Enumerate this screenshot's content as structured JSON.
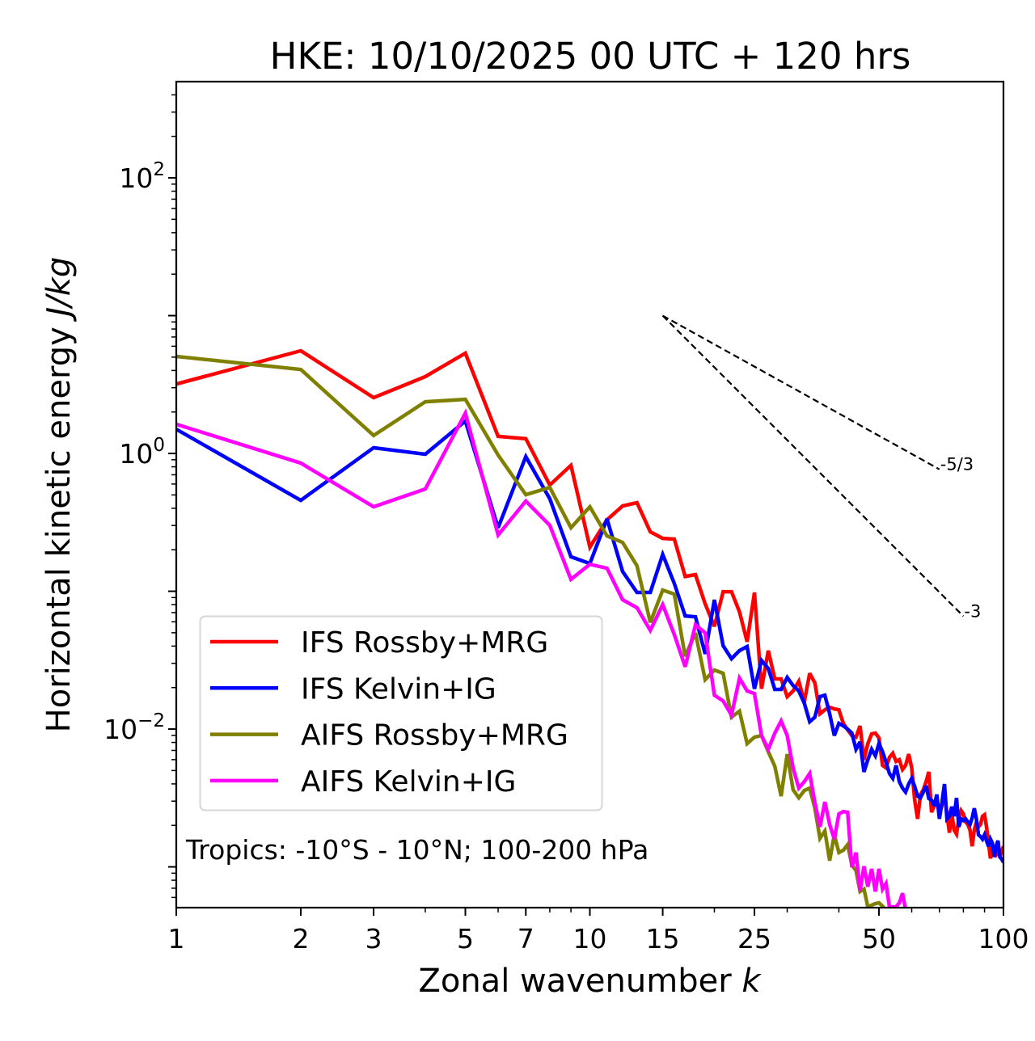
{
  "chart_data": {
    "type": "line",
    "title": "HKE: 10/10/2025 00 UTC + 120 hrs",
    "xlabel": "Zonal wavenumber ",
    "xlabel_italic": "k",
    "ylabel": "Horizontal kinetic energy ",
    "ylabel_italic": "J/kg",
    "xscale": "log",
    "yscale": "log",
    "xlim": [
      1,
      100
    ],
    "ylim": [
      0.000506,
      499
    ],
    "x_ticks": [
      1,
      2,
      3,
      5,
      7,
      10,
      15,
      25,
      50,
      100
    ],
    "x_tick_labels": [
      "1",
      "2",
      "3",
      "5",
      "7",
      "10",
      "15",
      "25",
      "50",
      "100"
    ],
    "x_minor_ticks": [
      4,
      6,
      8,
      9,
      20,
      30,
      40,
      60,
      70,
      80,
      90
    ],
    "y_major_ticks": [
      0.001,
      0.01,
      0.1,
      1,
      10,
      100
    ],
    "y_tick_labels": [
      {
        "value": 100,
        "base": "10",
        "exp": "2"
      },
      {
        "value": 1,
        "base": "10",
        "exp": "0"
      },
      {
        "value": 0.01,
        "base": "10",
        "exp": "−2"
      }
    ],
    "grid": false,
    "legend_position": "lower-left",
    "annotation": "Tropics: -10°S - 10°N; 100-200 hPa",
    "reference_lines": [
      {
        "label": "-5/3",
        "slope": -1.6667,
        "k_start": 15,
        "e_start": 10,
        "k_end": 70,
        "color": "#000000",
        "style": "dashed"
      },
      {
        "label": "-3",
        "slope": -3,
        "k_start": 15,
        "e_start": 10,
        "k_end": 80,
        "color": "#000000",
        "style": "dashed"
      }
    ],
    "series": [
      {
        "name": "IFS Rossby+MRG",
        "color": "#ff0000",
        "k_start": 1,
        "values": [
          3.19,
          5.56,
          2.54,
          3.61,
          5.34,
          1.33,
          1.28,
          0.59,
          0.82,
          0.209,
          0.33,
          0.416,
          0.439,
          0.27,
          0.242,
          0.239,
          0.128,
          0.132,
          0.081,
          0.0556,
          0.0993,
          0.0993,
          0.0709,
          0.043,
          0.098,
          0.0196,
          0.0371,
          0.0231,
          0.0231,
          0.0172,
          0.0189,
          0.0222,
          0.0158,
          0.0254,
          0.0216,
          0.0129,
          0.0138,
          0.0144,
          0.014,
          0.0138,
          0.011,
          0.00986,
          0.00897,
          0.00873,
          0.01055,
          0.00599,
          0.00784,
          0.00922,
          0.00935,
          0.00862,
          0.00545,
          0.00523,
          0.00623,
          0.00667,
          0.00582,
          0.00599,
          0.00509,
          0.00545,
          0.00658,
          0.00523,
          0.00305,
          0.00223,
          0.00335,
          0.00363,
          0.00416,
          0.00489,
          0.00249,
          0.00277,
          0.00305,
          0.00242,
          0.00277,
          0.00349,
          0.00242,
          0.00177,
          0.00242,
          0.00185,
          0.00173,
          0.00223,
          0.00256,
          0.00242,
          0.00212,
          0.00203,
          0.00185,
          0.00141,
          0.00185,
          0.00212,
          0.00195,
          0.00203,
          0.00233,
          0.00239,
          0.00195,
          0.00149,
          0.00115,
          0.00141,
          0.0013,
          0.00123,
          0.0013,
          0.00118,
          0.0013,
          0.00141
        ]
      },
      {
        "name": "IFS Kelvin+IG",
        "color": "#0000ff",
        "k_start": 1,
        "values": [
          1.5,
          0.457,
          1.1,
          0.987,
          1.72,
          0.289,
          0.948,
          0.469,
          0.178,
          0.159,
          0.335,
          0.139,
          0.098,
          0.098,
          0.185,
          0.114,
          0.0662,
          0.0653,
          0.0351,
          0.0867,
          0.0402,
          0.0324,
          0.0371,
          0.0397,
          0.0196,
          0.0315,
          0.0275,
          0.0194,
          0.0194,
          0.0237,
          0.0207,
          0.0189,
          0.0154,
          0.0113,
          0.0122,
          0.0172,
          0.0176,
          0.0129,
          0.00897,
          0.011,
          0.01055,
          0.01,
          0.00935,
          0.00713,
          0.00806,
          0.00489,
          0.00599,
          0.00713,
          0.0064,
          0.00784,
          0.00685,
          0.00575,
          0.00476,
          0.00439,
          0.00545,
          0.00416,
          0.00373,
          0.00349,
          0.00399,
          0.00439,
          0.00383,
          0.00326,
          0.00317,
          0.00349,
          0.00388,
          0.00313,
          0.00305,
          0.00277,
          0.00335,
          0.00223,
          0.00292,
          0.00399,
          0.00223,
          0.00233,
          0.00273,
          0.00233,
          0.00317,
          0.00195,
          0.00223,
          0.00217,
          0.00223,
          0.00212,
          0.00203,
          0.00226,
          0.00266,
          0.00223,
          0.00171,
          0.00166,
          0.00159,
          0.00171,
          0.00155,
          0.00141,
          0.00159,
          0.00149,
          0.00118,
          0.00141,
          0.00155,
          0.00118,
          0.00114,
          0.00108
        ]
      },
      {
        "name": "AIFS Rossby+MRG",
        "color": "#808000",
        "k_start": 1,
        "values": [
          5.06,
          4.07,
          1.35,
          2.37,
          2.47,
          0.973,
          0.502,
          0.567,
          0.289,
          0.41,
          0.252,
          0.226,
          0.153,
          0.0594,
          0.102,
          0.0954,
          0.0337,
          0.0499,
          0.0228,
          0.0268,
          0.0254,
          0.0122,
          0.0135,
          0.00784,
          0.00873,
          0.00897,
          0.00685,
          0.00537,
          0.00326,
          0.00658,
          0.00363,
          0.00317,
          0.00358,
          0.00373,
          0.00266,
          0.00161,
          0.00182,
          0.00111,
          0.00171,
          0.00127,
          0.00132,
          0.00145,
          0.00103,
          0.000941,
          0.000663,
          0.00069,
          0.000513,
          0.000527,
          0.000541,
          0.000548,
          0.00052,
          0.00048
        ]
      },
      {
        "name": "AIFS Kelvin+IG",
        "color": "#ff00ff",
        "k_start": 1,
        "values": [
          1.63,
          0.851,
          0.41,
          0.552,
          1.96,
          0.256,
          0.451,
          0.301,
          0.122,
          0.157,
          0.147,
          0.0867,
          0.0759,
          0.052,
          0.08,
          0.0485,
          0.0283,
          0.0571,
          0.0499,
          0.0176,
          0.016,
          0.0126,
          0.0234,
          0.0189,
          0.0181,
          0.00897,
          0.00713,
          0.00935,
          0.01145,
          0.00897,
          0.00523,
          0.00373,
          0.00416,
          0.00476,
          0.00292,
          0.00195,
          0.00296,
          0.00203,
          0.00159,
          0.00242,
          0.00252,
          0.00249,
          0.000993,
          0.00127,
          0.000671,
          0.00101,
          0.000718,
          0.000967,
          0.000663,
          0.000967,
          0.00069,
          0.000758,
          0.000513,
          0.000513,
          0.000513,
          0.000548,
          0.000644,
          0.00049
        ]
      }
    ]
  }
}
